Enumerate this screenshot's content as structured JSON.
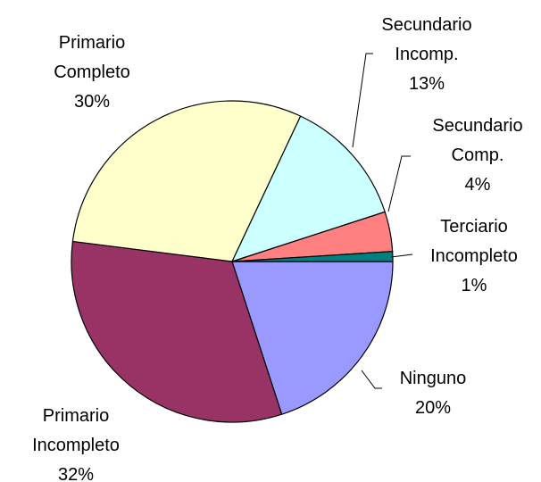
{
  "chart_data": {
    "type": "pie",
    "categories": [
      "Ninguno",
      "Primario Incompleto",
      "Primario Completo",
      "Secundario Incomp.",
      "Secundario Comp.",
      "Terciario Incompleto"
    ],
    "values": [
      20,
      32,
      30,
      13,
      4,
      1
    ],
    "value_labels": [
      "20%",
      "32%",
      "30%",
      "13%",
      "4%",
      "1%"
    ],
    "colors": [
      "#9999ff",
      "#993366",
      "#ffffcc",
      "#ccffff",
      "#ff8080",
      "#008080"
    ]
  }
}
